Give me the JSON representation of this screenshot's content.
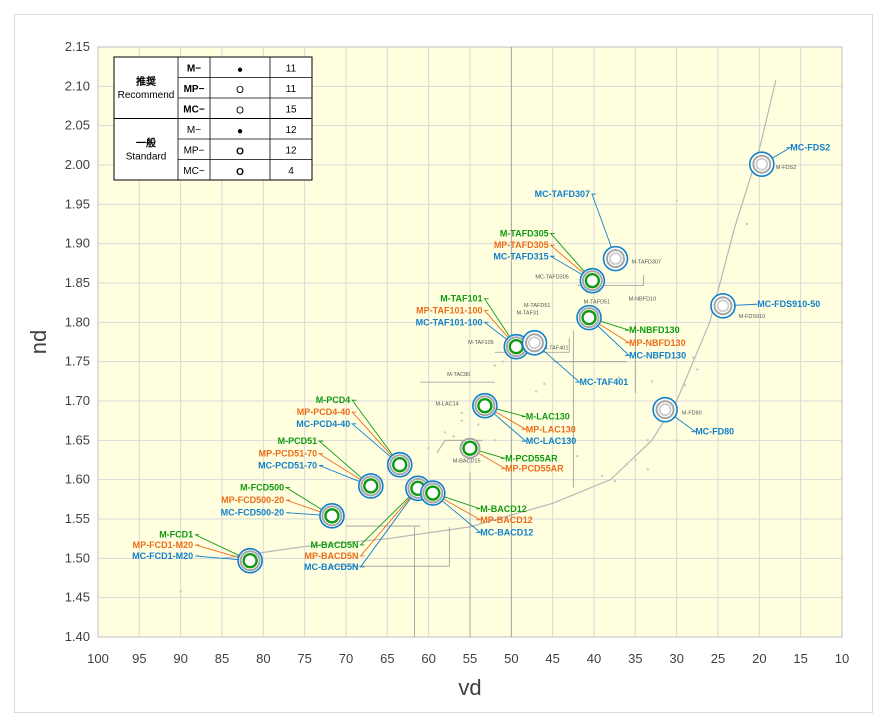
{
  "chart_data": {
    "type": "scatter",
    "xlabel": "vd",
    "ylabel": "nd",
    "xlim": [
      100,
      10
    ],
    "ylim": [
      1.4,
      2.15
    ],
    "x_reversed": true,
    "grid": true,
    "x_ticks": [
      "100",
      "95",
      "90",
      "85",
      "80",
      "75",
      "70",
      "65",
      "60",
      "55",
      "50",
      "45",
      "40",
      "35",
      "30",
      "25",
      "20",
      "15",
      "10"
    ],
    "y_ticks": [
      "1.40",
      "1.45",
      "1.50",
      "1.55",
      "1.60",
      "1.65",
      "1.70",
      "1.75",
      "1.80",
      "1.85",
      "1.90",
      "1.95",
      "2.00",
      "2.05",
      "2.10",
      "2.15"
    ],
    "colors": {
      "green": "#109a10",
      "orange": "#ec6c18",
      "blue": "#1280c8",
      "grey": "#a6a6a6",
      "plot_bg": "#ffffe0"
    },
    "legend": {
      "placement": "top-left",
      "groups": [
        {
          "label_jp": "推奨",
          "label_en": "Recommend",
          "rows": [
            {
              "name": "M−",
              "symbol": "●",
              "count": "11",
              "color": "#109a10"
            },
            {
              "name": "MP−",
              "symbol": "O",
              "count": "11",
              "color": "#ec6c18"
            },
            {
              "name": "MC−",
              "symbol": "O",
              "count": "15",
              "color": "#1280c8"
            }
          ]
        },
        {
          "label_jp": "一般",
          "label_en": "Standard",
          "rows": [
            {
              "name": "M−",
              "symbol": "●",
              "count": "12",
              "color": "#000000"
            },
            {
              "name": "MP−",
              "symbol": "O",
              "count": "12",
              "color": "#000000"
            },
            {
              "name": "MC−",
              "symbol": "O",
              "count": "4",
              "color": "#000000"
            }
          ]
        }
      ]
    },
    "recommended_points": [
      {
        "x": 81.6,
        "y": 1.497,
        "layers": [
          "green",
          "orange",
          "blue"
        ],
        "labels": [
          {
            "text": "M-FCD1",
            "color": "green",
            "lx": 88,
            "ly": 1.53
          },
          {
            "text": "MP-FCD1-M20",
            "color": "orange",
            "lx": 88,
            "ly": 1.517
          },
          {
            "text": "MC-FCD1-M20",
            "color": "blue",
            "lx": 88,
            "ly": 1.503
          }
        ]
      },
      {
        "x": 71.7,
        "y": 1.554,
        "layers": [
          "green",
          "orange",
          "blue"
        ],
        "labels": [
          {
            "text": "M-FCD500",
            "color": "green",
            "lx": 77,
            "ly": 1.59
          },
          {
            "text": "MP-FCD500-20",
            "color": "orange",
            "lx": 77,
            "ly": 1.574
          },
          {
            "text": "MC-FCD500-20",
            "color": "blue",
            "lx": 77,
            "ly": 1.558
          }
        ]
      },
      {
        "x": 67.0,
        "y": 1.592,
        "layers": [
          "green",
          "orange",
          "blue"
        ],
        "labels": [
          {
            "text": "M-PCD51",
            "color": "green",
            "lx": 73,
            "ly": 1.649
          },
          {
            "text": "MP-PCD51-70",
            "color": "orange",
            "lx": 73,
            "ly": 1.633
          },
          {
            "text": "MC-PCD51-70",
            "color": "blue",
            "lx": 73,
            "ly": 1.618
          }
        ]
      },
      {
        "x": 63.5,
        "y": 1.619,
        "layers": [
          "green",
          "orange",
          "blue"
        ],
        "labels": [
          {
            "text": "M-PCD4",
            "color": "green",
            "lx": 69,
            "ly": 1.701
          },
          {
            "text": "MP-PCD4-40",
            "color": "orange",
            "lx": 69,
            "ly": 1.686
          },
          {
            "text": "MC-PCD4-40",
            "color": "blue",
            "lx": 69,
            "ly": 1.671
          }
        ]
      },
      {
        "x": 61.3,
        "y": 1.589,
        "layers": [
          "green",
          "orange",
          "blue"
        ],
        "labels": [
          {
            "text": "M-BACD5N",
            "color": "green",
            "lx": 68,
            "ly": 1.517
          },
          {
            "text": "MP-BACD5N",
            "color": "orange",
            "lx": 68,
            "ly": 1.503
          },
          {
            "text": "MC-BACD5N",
            "color": "blue",
            "lx": 68,
            "ly": 1.489
          }
        ]
      },
      {
        "x": 59.5,
        "y": 1.583,
        "layers": [
          "green",
          "orange",
          "blue"
        ],
        "labels": [
          {
            "text": "M-BACD12",
            "color": "green",
            "lx": 54,
            "ly": 1.563
          },
          {
            "text": "MP-BACD12",
            "color": "orange",
            "lx": 54,
            "ly": 1.549
          },
          {
            "text": "MC-BACD12",
            "color": "blue",
            "lx": 54,
            "ly": 1.533
          }
        ]
      },
      {
        "x": 55.0,
        "y": 1.64,
        "layers": [
          "green",
          "orange"
        ],
        "labels": [
          {
            "text": "M-PCD55AR",
            "color": "green",
            "lx": 51,
            "ly": 1.627
          },
          {
            "text": "MP-PCD55AR",
            "color": "orange",
            "lx": 51,
            "ly": 1.614
          }
        ]
      },
      {
        "x": 53.2,
        "y": 1.694,
        "layers": [
          "green",
          "orange",
          "blue"
        ],
        "labels": [
          {
            "text": "M-LAC130",
            "color": "green",
            "lx": 48.5,
            "ly": 1.68
          },
          {
            "text": "MP-LAC130",
            "color": "orange",
            "lx": 48.5,
            "ly": 1.664
          },
          {
            "text": "MC-LAC130",
            "color": "blue",
            "lx": 48.5,
            "ly": 1.649
          }
        ]
      },
      {
        "x": 49.4,
        "y": 1.769,
        "layers": [
          "green",
          "orange",
          "blue"
        ],
        "labels": [
          {
            "text": "M-TAF101",
            "color": "green",
            "lx": 53,
            "ly": 1.83
          },
          {
            "text": "MP-TAF101-100",
            "color": "orange",
            "lx": 53,
            "ly": 1.815
          },
          {
            "text": "MC-TAF101-100",
            "color": "blue",
            "lx": 53,
            "ly": 1.8
          }
        ]
      },
      {
        "x": 40.6,
        "y": 1.806,
        "layers": [
          "green",
          "orange",
          "blue"
        ],
        "labels": [
          {
            "text": "M-NBFD130",
            "color": "green",
            "lx": 36,
            "ly": 1.79
          },
          {
            "text": "MP-NBFD130",
            "color": "orange",
            "lx": 36,
            "ly": 1.774
          },
          {
            "text": "MC-NBFD130",
            "color": "blue",
            "lx": 36,
            "ly": 1.758
          }
        ]
      },
      {
        "x": 40.2,
        "y": 1.853,
        "layers": [
          "green",
          "orange",
          "blue"
        ],
        "labels": [
          {
            "text": "M-TAFD305",
            "color": "green",
            "lx": 45,
            "ly": 1.913
          },
          {
            "text": "MP-TAFD305",
            "color": "orange",
            "lx": 45,
            "ly": 1.898
          },
          {
            "text": "MC-TAFD315",
            "color": "blue",
            "lx": 45,
            "ly": 1.884
          }
        ]
      },
      {
        "x": 47.2,
        "y": 1.774,
        "layers": [
          "blue"
        ],
        "labels": [
          {
            "text": "MC-TAF401",
            "color": "blue",
            "lx": 42,
            "ly": 1.724
          }
        ]
      },
      {
        "x": 37.4,
        "y": 1.881,
        "layers": [
          "blue"
        ],
        "labels": [
          {
            "text": "MC-TAFD307",
            "color": "blue",
            "lx": 40,
            "ly": 1.963
          }
        ]
      },
      {
        "x": 31.4,
        "y": 1.689,
        "layers": [
          "blue"
        ],
        "labels": [
          {
            "text": "MC-FD80",
            "color": "blue",
            "lx": 28,
            "ly": 1.661
          }
        ]
      },
      {
        "x": 24.4,
        "y": 1.821,
        "layers": [
          "blue"
        ],
        "labels": [
          {
            "text": "MC-FDS910-50",
            "color": "blue",
            "lx": 20.5,
            "ly": 1.823
          }
        ]
      },
      {
        "x": 19.7,
        "y": 2.001,
        "layers": [
          "blue"
        ],
        "labels": [
          {
            "text": "MC-FDS2",
            "color": "blue",
            "lx": 16.5,
            "ly": 2.022
          }
        ]
      }
    ],
    "standard_points": [
      {
        "x": 58.3,
        "y": 1.622,
        "label": "M-BACD15"
      },
      {
        "x": 55.3,
        "y": 1.697,
        "label": "M-LAC14"
      },
      {
        "x": 53.9,
        "y": 1.729,
        "label": "M-TAC80"
      },
      {
        "x": 49.9,
        "y": 1.771,
        "label": "M-TAF105"
      },
      {
        "x": 47.4,
        "y": 1.773,
        "label": "M-TAF401"
      },
      {
        "x": 45.5,
        "y": 1.8,
        "label": "M-TAF31"
      },
      {
        "x": 45.2,
        "y": 1.803,
        "label": "M-TAFD51"
      },
      {
        "x": 42.7,
        "y": 1.82,
        "label": "M-TAFD51"
      },
      {
        "x": 37.5,
        "y": 1.834,
        "label": "M-NBFD10"
      },
      {
        "x": 37.4,
        "y": 1.881,
        "label": "M-TAFD307"
      },
      {
        "x": 40.2,
        "y": 1.853,
        "label": "MC-TAFD305"
      },
      {
        "x": 31.3,
        "y": 1.689,
        "label": "M-FD80"
      },
      {
        "x": 24.2,
        "y": 1.821,
        "label": "M-FDS910"
      },
      {
        "x": 19.7,
        "y": 2.001,
        "label": "M-FDS2"
      }
    ],
    "glass_line": [
      [
        18,
        2.108
      ],
      [
        20,
        2.02
      ],
      [
        23,
        1.92
      ],
      [
        26,
        1.8
      ],
      [
        30,
        1.7
      ],
      [
        33,
        1.65
      ],
      [
        38,
        1.6
      ],
      [
        45,
        1.57
      ],
      [
        55,
        1.54
      ],
      [
        65,
        1.525
      ],
      [
        75,
        1.515
      ],
      [
        85,
        1.5
      ]
    ],
    "faint_points": [
      [
        90,
        1.458
      ],
      [
        30,
        1.955
      ],
      [
        21.5,
        1.925
      ],
      [
        28,
        1.755
      ],
      [
        29,
        1.72
      ],
      [
        27.5,
        1.74
      ],
      [
        30,
        1.65
      ],
      [
        33.5,
        1.65
      ],
      [
        33.5,
        1.613
      ],
      [
        35,
        1.625
      ],
      [
        36,
        1.62
      ],
      [
        39,
        1.605
      ],
      [
        37.5,
        1.598
      ],
      [
        56,
        1.685
      ],
      [
        56,
        1.675
      ],
      [
        54,
        1.67
      ],
      [
        52,
        1.65
      ],
      [
        57,
        1.655
      ],
      [
        58,
        1.66
      ],
      [
        60,
        1.64
      ],
      [
        52,
        1.745
      ],
      [
        51,
        1.75
      ],
      [
        50,
        1.755
      ],
      [
        46,
        1.722
      ],
      [
        47,
        1.712
      ],
      [
        42,
        1.63
      ],
      [
        37,
        1.73
      ],
      [
        35,
        1.735
      ],
      [
        33,
        1.725
      ]
    ]
  }
}
